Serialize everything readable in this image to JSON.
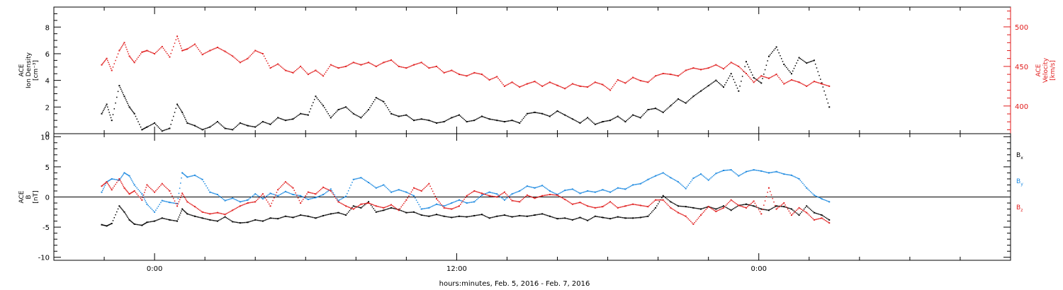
{
  "colors": {
    "black": "#000000",
    "red": "#e01b1b",
    "blue": "#1a88e0"
  },
  "chart_data": [
    {
      "type": "scatter",
      "panel": "density-velocity",
      "ylabel_lines": [
        "ACE",
        "Ion Density",
        "[cm⁻³]"
      ],
      "ylabel2_lines": [
        "ACE",
        "Velocity",
        "[km/s]"
      ],
      "ylim": [
        0,
        9.5
      ],
      "y2lim": [
        365,
        525
      ],
      "yticks": [
        "0",
        "2",
        "4",
        "6",
        "8"
      ],
      "y2ticks": [
        "400",
        "450",
        "500"
      ],
      "series": [
        {
          "axis": "left",
          "color": "#000000",
          "x": [
            -2.1,
            -1.9,
            -1.7,
            -1.4,
            -1.2,
            -1.0,
            -0.8,
            -0.5,
            -0.3,
            0.0,
            0.3,
            0.6,
            0.9,
            1.1,
            1.3,
            1.6,
            1.9,
            2.2,
            2.5,
            2.8,
            3.1,
            3.4,
            3.7,
            4.0,
            4.3,
            4.6,
            4.9,
            5.2,
            5.5,
            5.8,
            6.1,
            6.4,
            6.7,
            7.0,
            7.3,
            7.6,
            7.9,
            8.2,
            8.5,
            8.8,
            9.1,
            9.4,
            9.7,
            10.0,
            10.3,
            10.6,
            10.9,
            11.2,
            11.5,
            11.8,
            12.1,
            12.4,
            12.7,
            13.0,
            13.3,
            13.6,
            13.9,
            14.2,
            14.5,
            14.8,
            15.1,
            15.4,
            15.7,
            16.0,
            16.3,
            16.6,
            16.9,
            17.2,
            17.5,
            17.8,
            18.1,
            18.4,
            18.7,
            19.0,
            19.3,
            19.6,
            19.9,
            20.2,
            20.5,
            20.8,
            21.1,
            21.4,
            21.7,
            22.0,
            22.3,
            22.6,
            22.9,
            23.2,
            23.5,
            23.8,
            24.1,
            24.4,
            24.7,
            25.0,
            25.3,
            25.6,
            25.9,
            26.2,
            26.5,
            26.8
          ],
          "y": [
            1.5,
            2.2,
            1.0,
            3.6,
            2.8,
            2.0,
            1.5,
            0.3,
            0.5,
            0.8,
            0.2,
            0.4,
            2.2,
            1.6,
            0.8,
            0.6,
            0.3,
            0.5,
            0.9,
            0.4,
            0.3,
            0.8,
            0.6,
            0.5,
            0.9,
            0.7,
            1.2,
            1.0,
            1.1,
            1.5,
            1.4,
            2.8,
            2.1,
            1.2,
            1.8,
            2.0,
            1.5,
            1.2,
            1.8,
            2.7,
            2.4,
            1.5,
            1.3,
            1.4,
            1.0,
            1.1,
            1.0,
            0.8,
            0.9,
            1.2,
            1.4,
            0.9,
            1.0,
            1.3,
            1.1,
            1.0,
            0.9,
            1.0,
            0.8,
            1.5,
            1.6,
            1.5,
            1.3,
            1.7,
            1.4,
            1.1,
            0.8,
            1.2,
            0.7,
            0.9,
            1.0,
            1.3,
            0.9,
            1.4,
            1.2,
            1.8,
            1.9,
            1.6,
            2.1,
            2.6,
            2.3,
            2.8,
            3.2,
            3.6,
            4.0,
            3.5,
            4.5,
            3.2,
            5.4,
            4.2,
            3.8,
            5.8,
            6.5,
            5.2,
            4.5,
            5.7,
            5.3,
            5.5,
            3.8,
            2.0
          ]
        },
        {
          "axis": "right",
          "color": "#e01b1b",
          "x": [
            -2.1,
            -1.9,
            -1.7,
            -1.4,
            -1.2,
            -1.0,
            -0.8,
            -0.5,
            -0.3,
            0.0,
            0.3,
            0.6,
            0.9,
            1.1,
            1.3,
            1.6,
            1.9,
            2.2,
            2.5,
            2.8,
            3.1,
            3.4,
            3.7,
            4.0,
            4.3,
            4.6,
            4.9,
            5.2,
            5.5,
            5.8,
            6.1,
            6.4,
            6.7,
            7.0,
            7.3,
            7.6,
            7.9,
            8.2,
            8.5,
            8.8,
            9.1,
            9.4,
            9.7,
            10.0,
            10.3,
            10.6,
            10.9,
            11.2,
            11.5,
            11.8,
            12.1,
            12.4,
            12.7,
            13.0,
            13.3,
            13.6,
            13.9,
            14.2,
            14.5,
            14.8,
            15.1,
            15.4,
            15.7,
            16.0,
            16.3,
            16.6,
            16.9,
            17.2,
            17.5,
            17.8,
            18.1,
            18.4,
            18.7,
            19.0,
            19.3,
            19.6,
            19.9,
            20.2,
            20.5,
            20.8,
            21.1,
            21.4,
            21.7,
            22.0,
            22.3,
            22.6,
            22.9,
            23.2,
            23.5,
            23.8,
            24.1,
            24.4,
            24.7,
            25.0,
            25.3,
            25.6,
            25.9,
            26.2,
            26.5,
            26.8
          ],
          "y": [
            452,
            460,
            445,
            470,
            480,
            463,
            455,
            468,
            470,
            466,
            475,
            462,
            488,
            470,
            472,
            478,
            465,
            470,
            474,
            469,
            463,
            455,
            460,
            470,
            466,
            448,
            453,
            445,
            442,
            450,
            440,
            445,
            438,
            452,
            448,
            450,
            455,
            452,
            455,
            450,
            455,
            458,
            450,
            448,
            452,
            455,
            448,
            450,
            442,
            445,
            440,
            438,
            442,
            440,
            433,
            437,
            425,
            430,
            424,
            428,
            431,
            425,
            430,
            426,
            422,
            428,
            425,
            424,
            430,
            427,
            420,
            433,
            429,
            436,
            432,
            430,
            438,
            441,
            440,
            438,
            445,
            448,
            446,
            448,
            452,
            447,
            455,
            450,
            441,
            430,
            438,
            435,
            440,
            428,
            433,
            430,
            425,
            431,
            428,
            425
          ]
        }
      ]
    },
    {
      "type": "scatter",
      "panel": "magnetic-field",
      "ylabel_lines": [
        "ACE",
        "B",
        "[nT]"
      ],
      "ylim": [
        -10.5,
        10.5
      ],
      "yticks": [
        "-10",
        "-5",
        "0",
        "5",
        "10"
      ],
      "legend": [
        "B",
        "B",
        "B"
      ],
      "legend_subscripts": [
        "x",
        "y",
        "z"
      ],
      "series": [
        {
          "name": "Bx",
          "color": "#000000",
          "x": [
            -2.1,
            -1.9,
            -1.7,
            -1.4,
            -1.2,
            -1.0,
            -0.8,
            -0.5,
            -0.3,
            0.0,
            0.3,
            0.6,
            0.9,
            1.1,
            1.3,
            1.6,
            1.9,
            2.2,
            2.5,
            2.8,
            3.1,
            3.4,
            3.7,
            4.0,
            4.3,
            4.6,
            4.9,
            5.2,
            5.5,
            5.8,
            6.1,
            6.4,
            6.7,
            7.0,
            7.3,
            7.6,
            7.9,
            8.2,
            8.5,
            8.8,
            9.1,
            9.4,
            9.7,
            10.0,
            10.3,
            10.6,
            10.9,
            11.2,
            11.5,
            11.8,
            12.1,
            12.4,
            12.7,
            13.0,
            13.3,
            13.6,
            13.9,
            14.2,
            14.5,
            14.8,
            15.1,
            15.4,
            15.7,
            16.0,
            16.3,
            16.6,
            16.9,
            17.2,
            17.5,
            17.8,
            18.1,
            18.4,
            18.7,
            19.0,
            19.3,
            19.6,
            19.9,
            20.2,
            20.5,
            20.8,
            21.1,
            21.4,
            21.7,
            22.0,
            22.3,
            22.6,
            22.9,
            23.2,
            23.5,
            23.8,
            24.1,
            24.4,
            24.7,
            25.0,
            25.3,
            25.6,
            25.9,
            26.2,
            26.5,
            26.8
          ],
          "y": [
            -4.6,
            -4.8,
            -4.4,
            -1.5,
            -2.5,
            -3.8,
            -4.5,
            -4.7,
            -4.2,
            -4.0,
            -3.5,
            -3.8,
            -4.0,
            -2.0,
            -2.8,
            -3.2,
            -3.5,
            -3.8,
            -4.0,
            -3.3,
            -4.1,
            -4.3,
            -4.2,
            -3.8,
            -4.0,
            -3.5,
            -3.6,
            -3.2,
            -3.4,
            -3.0,
            -3.2,
            -3.5,
            -3.1,
            -2.8,
            -2.6,
            -3.0,
            -1.5,
            -1.8,
            -0.8,
            -2.5,
            -2.2,
            -1.8,
            -2.1,
            -2.6,
            -2.5,
            -3.0,
            -3.2,
            -2.9,
            -3.2,
            -3.4,
            -3.2,
            -3.3,
            -3.1,
            -2.9,
            -3.5,
            -3.2,
            -3.0,
            -3.3,
            -3.1,
            -3.2,
            -3.0,
            -2.8,
            -3.2,
            -3.6,
            -3.5,
            -3.8,
            -3.4,
            -3.9,
            -3.2,
            -3.4,
            -3.6,
            -3.3,
            -3.5,
            -3.5,
            -3.4,
            -3.2,
            -1.8,
            0.2,
            -0.8,
            -1.5,
            -1.6,
            -1.8,
            -2.0,
            -1.6,
            -2.0,
            -1.5,
            -2.2,
            -1.4,
            -1.2,
            -1.5,
            -2.0,
            -2.2,
            -1.5,
            -1.6,
            -2.0,
            -3.0,
            -1.5,
            -2.6,
            -3.0,
            -3.8
          ]
        },
        {
          "name": "By",
          "color": "#1a88e0",
          "x": [
            -2.1,
            -1.9,
            -1.7,
            -1.4,
            -1.2,
            -1.0,
            -0.8,
            -0.5,
            -0.3,
            0.0,
            0.3,
            0.6,
            0.9,
            1.1,
            1.3,
            1.6,
            1.9,
            2.2,
            2.5,
            2.8,
            3.1,
            3.4,
            3.7,
            4.0,
            4.3,
            4.6,
            4.9,
            5.2,
            5.5,
            5.8,
            6.1,
            6.4,
            6.7,
            7.0,
            7.3,
            7.6,
            7.9,
            8.2,
            8.5,
            8.8,
            9.1,
            9.4,
            9.7,
            10.0,
            10.3,
            10.6,
            10.9,
            11.2,
            11.5,
            11.8,
            12.1,
            12.4,
            12.7,
            13.0,
            13.3,
            13.6,
            13.9,
            14.2,
            14.5,
            14.8,
            15.1,
            15.4,
            15.7,
            16.0,
            16.3,
            16.6,
            16.9,
            17.2,
            17.5,
            17.8,
            18.1,
            18.4,
            18.7,
            19.0,
            19.3,
            19.6,
            19.9,
            20.2,
            20.5,
            20.8,
            21.1,
            21.4,
            21.7,
            22.0,
            22.3,
            22.6,
            22.9,
            23.2,
            23.5,
            23.8,
            24.1,
            24.4,
            24.7,
            25.0,
            25.3,
            25.6,
            25.9,
            26.2,
            26.5,
            26.8
          ],
          "y": [
            0.8,
            2.5,
            3.0,
            2.8,
            4.0,
            3.5,
            2.0,
            0.5,
            -1.2,
            -2.5,
            -0.6,
            -0.9,
            -1.1,
            4.0,
            3.3,
            3.6,
            2.9,
            0.8,
            0.4,
            -0.6,
            -0.2,
            -0.8,
            -0.5,
            0.5,
            -0.3,
            0.6,
            0.2,
            0.9,
            0.4,
            0.2,
            -0.4,
            -0.1,
            0.4,
            1.3,
            -0.6,
            0.1,
            2.9,
            3.2,
            2.4,
            1.5,
            2.0,
            0.8,
            1.2,
            0.8,
            0.2,
            -2.0,
            -1.8,
            -1.2,
            -1.5,
            -1.0,
            -0.5,
            -1.0,
            -0.8,
            0.3,
            0.8,
            0.5,
            -0.5,
            0.5,
            1.0,
            1.8,
            1.5,
            1.9,
            1.0,
            0.4,
            1.1,
            1.3,
            0.6,
            1.0,
            0.8,
            1.2,
            0.8,
            1.5,
            1.3,
            2.0,
            2.2,
            2.9,
            3.5,
            4.0,
            3.2,
            2.5,
            1.4,
            3.1,
            3.8,
            2.8,
            3.9,
            4.4,
            4.5,
            3.5,
            4.2,
            4.5,
            4.3,
            4.0,
            4.2,
            3.8,
            3.6,
            3.0,
            1.5,
            0.3,
            -0.3,
            -0.8
          ]
        },
        {
          "name": "Bz",
          "color": "#e01b1b",
          "x": [
            -2.1,
            -1.9,
            -1.7,
            -1.4,
            -1.2,
            -1.0,
            -0.8,
            -0.5,
            -0.3,
            0.0,
            0.3,
            0.6,
            0.9,
            1.1,
            1.3,
            1.6,
            1.9,
            2.2,
            2.5,
            2.8,
            3.1,
            3.4,
            3.7,
            4.0,
            4.3,
            4.6,
            4.9,
            5.2,
            5.5,
            5.8,
            6.1,
            6.4,
            6.7,
            7.0,
            7.3,
            7.6,
            7.9,
            8.2,
            8.5,
            8.8,
            9.1,
            9.4,
            9.7,
            10.0,
            10.3,
            10.6,
            10.9,
            11.2,
            11.5,
            11.8,
            12.1,
            12.4,
            12.7,
            13.0,
            13.3,
            13.6,
            13.9,
            14.2,
            14.5,
            14.8,
            15.1,
            15.4,
            15.7,
            16.0,
            16.3,
            16.6,
            16.9,
            17.2,
            17.5,
            17.8,
            18.1,
            18.4,
            18.7,
            19.0,
            19.3,
            19.6,
            19.9,
            20.2,
            20.5,
            20.8,
            21.1,
            21.4,
            21.7,
            22.0,
            22.3,
            22.6,
            22.9,
            23.2,
            23.5,
            23.8,
            24.1,
            24.4,
            24.7,
            25.0,
            25.3,
            25.6,
            25.9,
            26.2,
            26.5,
            26.8
          ],
          "y": [
            1.8,
            2.5,
            1.2,
            3.0,
            1.5,
            0.5,
            1.0,
            -0.5,
            2.0,
            0.8,
            2.2,
            1.0,
            -1.5,
            0.6,
            -0.8,
            -1.6,
            -2.5,
            -2.8,
            -2.6,
            -2.9,
            -2.2,
            -1.5,
            -1.0,
            -0.8,
            0.5,
            -1.5,
            1.2,
            2.5,
            1.5,
            -1.0,
            0.8,
            0.5,
            1.6,
            1.0,
            -0.8,
            -1.5,
            -2.0,
            -1.2,
            -1.0,
            -1.5,
            -1.8,
            -1.3,
            -2.2,
            -0.5,
            1.5,
            1.0,
            2.2,
            -0.3,
            -1.8,
            -2.0,
            -1.5,
            0.2,
            1.0,
            0.6,
            0.2,
            0.0,
            0.8,
            -0.6,
            -0.8,
            0.3,
            -0.2,
            0.2,
            0.4,
            0.3,
            -0.4,
            -1.2,
            -0.9,
            -1.5,
            -1.8,
            -1.6,
            -0.8,
            -1.8,
            -1.5,
            -1.2,
            -1.4,
            -1.6,
            -0.5,
            -0.5,
            -1.8,
            -2.6,
            -3.2,
            -4.5,
            -3.0,
            -1.6,
            -2.4,
            -1.8,
            -0.5,
            -1.4,
            -1.8,
            -0.7,
            -2.8,
            1.5,
            -2.0,
            -1.0,
            -3.0,
            -1.8,
            -2.6,
            -3.8,
            -3.5,
            -4.3
          ]
        }
      ],
      "xticks": [
        "0:00",
        "12:00",
        "0:00"
      ],
      "xlabel": "hours:minutes, Feb.  5, 2016 - Feb.  7, 2016",
      "xlim": [
        -4,
        34
      ]
    }
  ]
}
